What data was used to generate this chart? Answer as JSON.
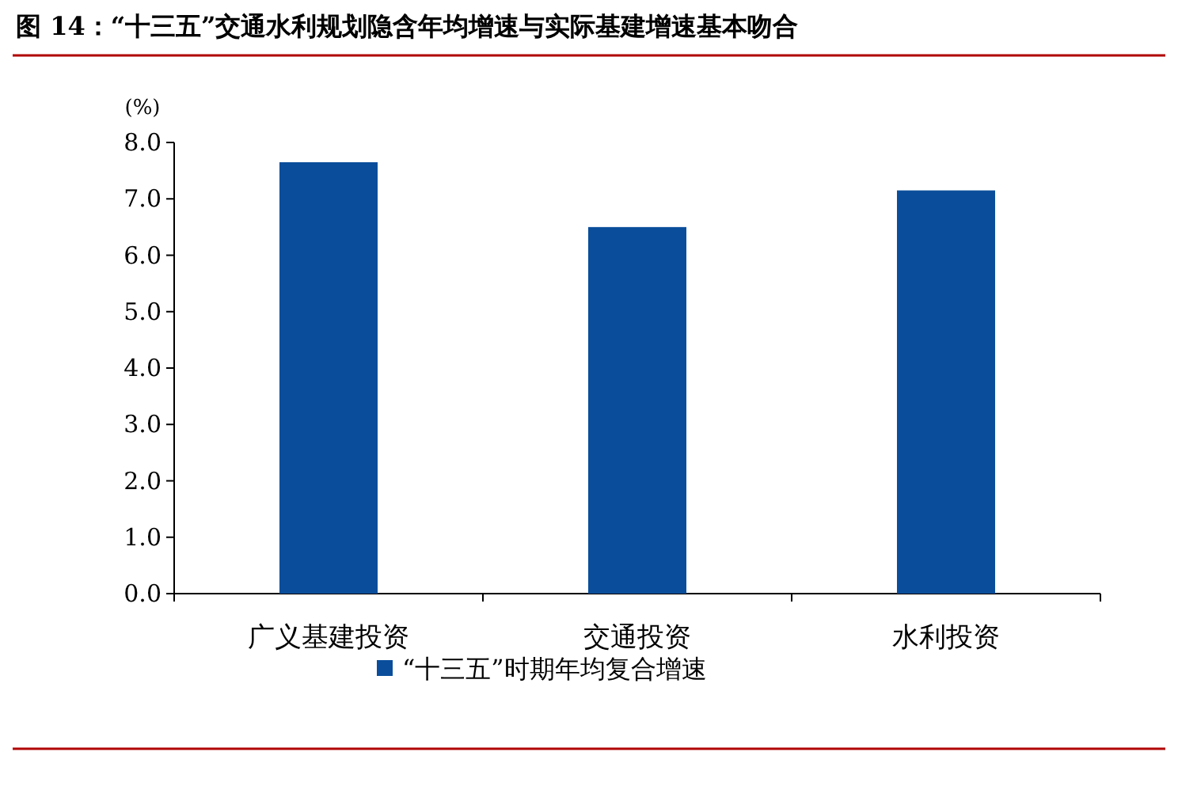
{
  "chart_data": {
    "type": "bar",
    "title": "图 14：“十三五”交通水利规划隐含年均增速与实际基建增速基本吻合",
    "ylabel": "(%)",
    "categories": [
      "广义基建投资",
      "交通投资",
      "水利投资"
    ],
    "series": [
      {
        "name": "“十三五”时期年均复合增速",
        "color": "#0a4e9b",
        "values": [
          7.65,
          6.5,
          7.15
        ]
      }
    ],
    "ylim": [
      0,
      8
    ],
    "yticks": [
      {
        "value": 0,
        "label": "0.0"
      },
      {
        "value": 1,
        "label": "1.0"
      },
      {
        "value": 2,
        "label": "2.0"
      },
      {
        "value": 3,
        "label": "3.0"
      },
      {
        "value": 4,
        "label": "4.0"
      },
      {
        "value": 5,
        "label": "5.0"
      },
      {
        "value": 6,
        "label": "6.0"
      },
      {
        "value": 7,
        "label": "7.0"
      },
      {
        "value": 8,
        "label": "8.0"
      }
    ],
    "grid": false,
    "legend": "bottom"
  }
}
